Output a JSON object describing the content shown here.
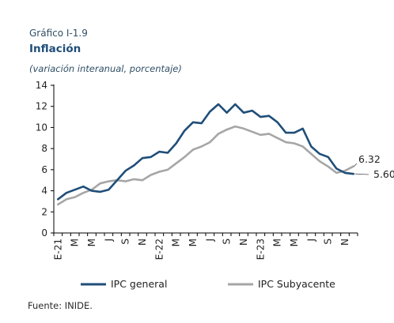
{
  "header": {
    "figure_label": "Gráfico I-1.9",
    "title": "Inflación",
    "subtitle": "(variación interanual, porcentaje)"
  },
  "footer": {
    "source": "Fuente: INIDE."
  },
  "chart_data": {
    "type": "line",
    "title": "Inflación",
    "subtitle": "(variación interanual, porcentaje)",
    "ylim": [
      0,
      14
    ],
    "yticks": [
      0,
      2,
      4,
      6,
      8,
      10,
      12,
      14
    ],
    "grid": false,
    "legend_position": "bottom",
    "x_tick_labels": [
      "E-21",
      "M",
      "M",
      "J",
      "S",
      "N",
      "E-22",
      "M",
      "M",
      "J",
      "S",
      "N",
      "E-23",
      "M",
      "M",
      "J",
      "S",
      "N"
    ],
    "x": [
      "2021-01",
      "2021-02",
      "2021-03",
      "2021-04",
      "2021-05",
      "2021-06",
      "2021-07",
      "2021-08",
      "2021-09",
      "2021-10",
      "2021-11",
      "2021-12",
      "2022-01",
      "2022-02",
      "2022-03",
      "2022-04",
      "2022-05",
      "2022-06",
      "2022-07",
      "2022-08",
      "2022-09",
      "2022-10",
      "2022-11",
      "2022-12",
      "2023-01",
      "2023-02",
      "2023-03",
      "2023-04",
      "2023-05",
      "2023-06",
      "2023-07",
      "2023-08",
      "2023-09",
      "2023-10",
      "2023-11",
      "2023-12"
    ],
    "series": [
      {
        "name": "IPC general",
        "color": "#1f4e79",
        "values": [
          3.2,
          3.8,
          4.1,
          4.4,
          4.0,
          3.9,
          4.1,
          5.0,
          5.9,
          6.4,
          7.1,
          7.2,
          7.7,
          7.6,
          8.5,
          9.7,
          10.5,
          10.4,
          11.5,
          12.2,
          11.4,
          12.2,
          11.4,
          11.6,
          11.0,
          11.1,
          10.5,
          9.5,
          9.5,
          9.9,
          8.2,
          7.5,
          7.2,
          6.1,
          5.7,
          5.6
        ],
        "end_label": "5.60"
      },
      {
        "name": "IPC Subyacente",
        "color": "#a6a6a6",
        "values": [
          2.7,
          3.2,
          3.4,
          3.8,
          4.1,
          4.7,
          4.9,
          5.0,
          4.9,
          5.1,
          5.0,
          5.5,
          5.8,
          6.0,
          6.6,
          7.2,
          7.9,
          8.2,
          8.6,
          9.4,
          9.8,
          10.1,
          9.9,
          9.6,
          9.3,
          9.4,
          9.0,
          8.6,
          8.5,
          8.2,
          7.5,
          6.8,
          6.3,
          5.7,
          5.9,
          6.32
        ],
        "end_label": "6.32"
      }
    ]
  }
}
